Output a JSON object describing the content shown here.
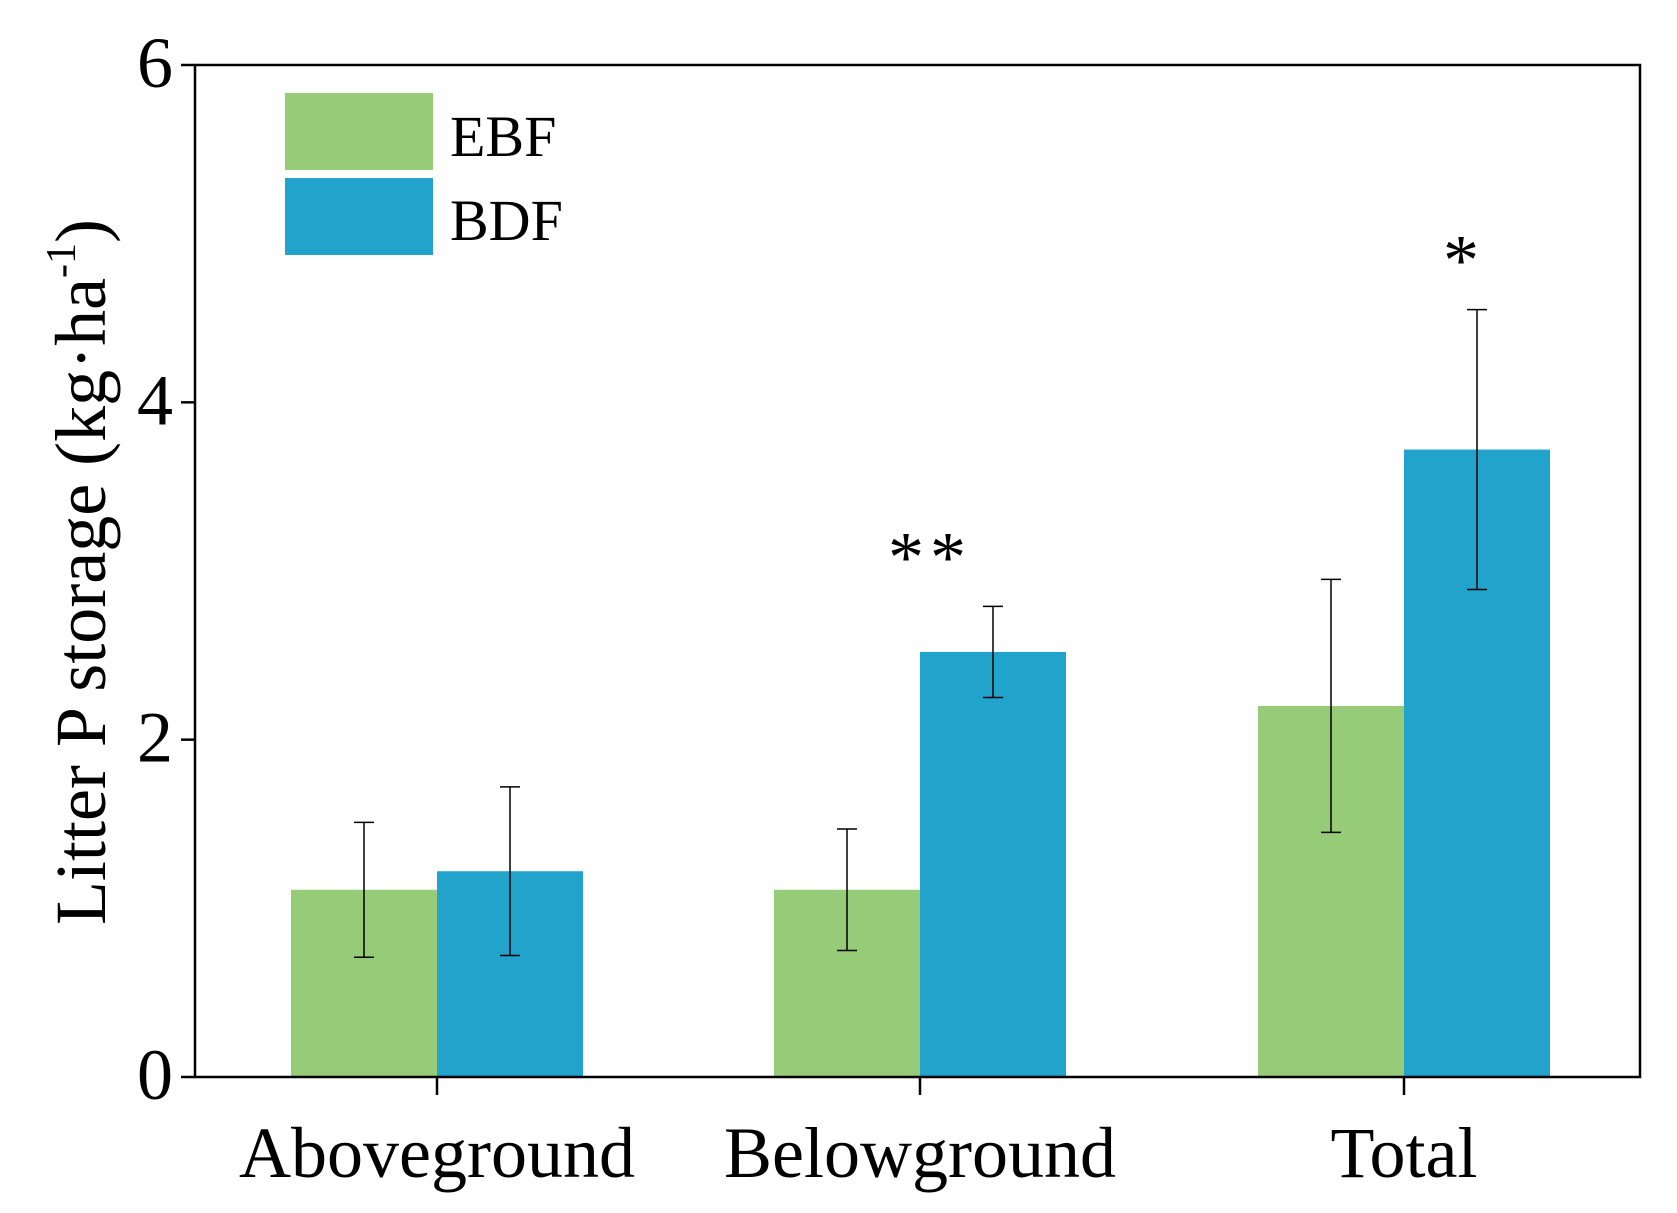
{
  "chart_data": {
    "type": "bar",
    "title": "",
    "xlabel": "",
    "ylabel": "Litter P storage (kg·ha",
    "ylabel_superscript": "-1",
    "ylabel_close": ")",
    "ylim": [
      0,
      6
    ],
    "yticks": [
      "0",
      "2",
      "4",
      "6"
    ],
    "categories": [
      "Aboveground",
      "Belowground",
      "Total"
    ],
    "series": [
      {
        "name": "EBF",
        "color": "#96cb78",
        "values": [
          1.11,
          1.11,
          2.2
        ],
        "errors": [
          0.4,
          0.36,
          0.75
        ]
      },
      {
        "name": "BDF",
        "color": "#21a3cb",
        "values": [
          1.22,
          2.52,
          3.72
        ],
        "errors": [
          0.5,
          0.27,
          0.83
        ]
      }
    ],
    "annotations": [
      {
        "category_index": 1,
        "text": "**"
      },
      {
        "category_index": 2,
        "text": "*"
      }
    ],
    "legend": {
      "position": "top-left"
    }
  }
}
